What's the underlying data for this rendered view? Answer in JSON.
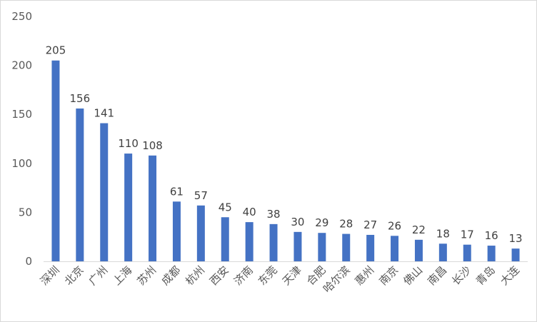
{
  "chart_data": {
    "type": "bar",
    "title": "",
    "xlabel": "",
    "ylabel": "",
    "ylim": [
      0,
      250
    ],
    "yticks": [
      0,
      50,
      100,
      150,
      200,
      250
    ],
    "grid": false,
    "legend": "none",
    "bar_color": "#4472C4",
    "categories": [
      "深圳",
      "北京",
      "广州",
      "上海",
      "苏州",
      "成都",
      "杭州",
      "西安",
      "济南",
      "东莞",
      "天津",
      "合肥",
      "哈尔滨",
      "惠州",
      "南京",
      "佛山",
      "南昌",
      "长沙",
      "青岛",
      "大连"
    ],
    "values": [
      205,
      156,
      141,
      110,
      108,
      61,
      57,
      45,
      40,
      38,
      30,
      29,
      28,
      27,
      26,
      22,
      18,
      17,
      16,
      13
    ]
  }
}
